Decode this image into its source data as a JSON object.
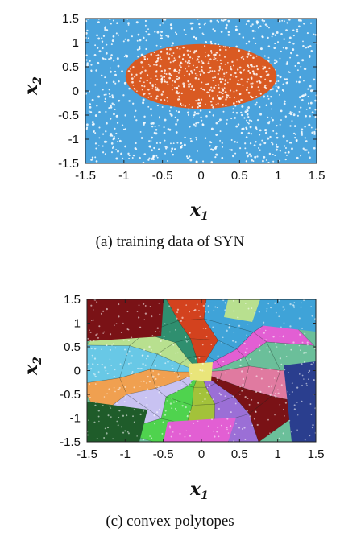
{
  "chart_data": [
    {
      "type": "scatter",
      "caption": "(a) training data of SYN",
      "xlabel": "x1",
      "ylabel": "x2",
      "xlim": [
        -1.5,
        1.5
      ],
      "ylim": [
        -1.5,
        1.5
      ],
      "xticks": [
        "-1.5",
        "-1",
        "-0.5",
        "0",
        "0.5",
        "1",
        "1.5"
      ],
      "yticks": [
        "1.5",
        "1",
        "0.5",
        "0",
        "-0.5",
        "-1",
        "-1.5"
      ],
      "grid": false,
      "regions": [
        {
          "class": "outside ellipse",
          "color": "#4aa3dd"
        },
        {
          "class": "inside ellipse",
          "color": "#d95a22",
          "center": [
            0,
            0.3
          ],
          "semi_axes": [
            0.98,
            0.67
          ]
        }
      ]
    },
    {
      "type": "scatter",
      "caption": "(c) convex polytopes",
      "xlabel": "x1",
      "ylabel": "x2",
      "xlim": [
        -1.5,
        1.5
      ],
      "ylim": [
        -1.5,
        1.5
      ],
      "xticks": [
        "-1.5",
        "-1",
        "-0.5",
        "0",
        "0.5",
        "1",
        "1.5"
      ],
      "yticks": [
        "1.5",
        "1",
        "0.5",
        "0",
        "-0.5",
        "-1",
        "-1.5"
      ],
      "grid": false
    }
  ],
  "palette": [
    "#7a1216",
    "#e25fd3",
    "#4fd34e",
    "#2a3e8e",
    "#68c8e6",
    "#e9e57a",
    "#d3421e",
    "#9b6fd6",
    "#6bbf9a",
    "#c8c2f2",
    "#1f5c2a",
    "#b8e08f",
    "#e07aa0",
    "#3fa3d8",
    "#a3c23a",
    "#5a2a6e",
    "#f0a050",
    "#8aa0e0",
    "#2f8f6f",
    "#ffffff"
  ]
}
